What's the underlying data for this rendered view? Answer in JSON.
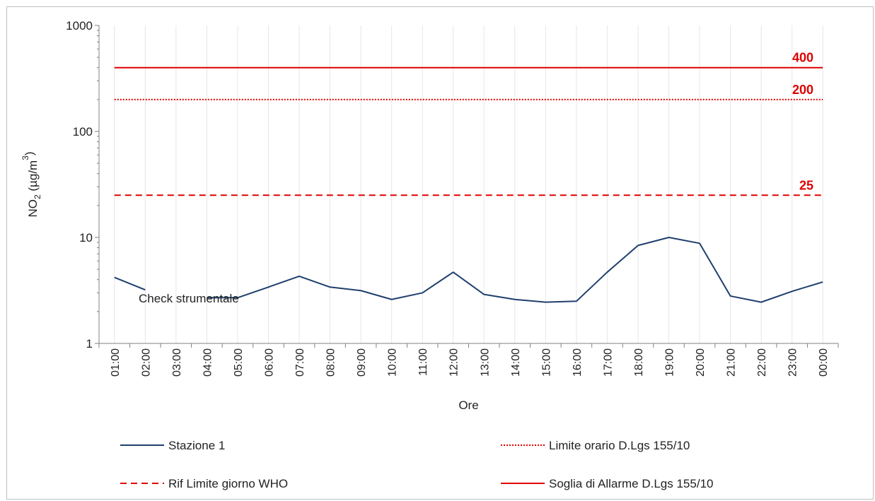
{
  "chart_data": {
    "type": "line",
    "title": "",
    "xlabel": "Ore",
    "ylabel_main": "NO",
    "ylabel_sub": "2",
    "ylabel_rest": " (µg/m",
    "ylabel_sup": "3",
    "ylabel_close": ")",
    "yscale": "log",
    "ylim": [
      1,
      1000
    ],
    "yticks": [
      "1",
      "10",
      "100",
      "1000"
    ],
    "ytick_values": [
      1,
      10,
      100,
      1000
    ],
    "categories": [
      "01:00",
      "02:00",
      "03:00",
      "04:00",
      "05:00",
      "06:00",
      "07:00",
      "08:00",
      "09:00",
      "10:00",
      "11:00",
      "12:00",
      "13:00",
      "14:00",
      "15:00",
      "16:00",
      "17:00",
      "18:00",
      "19:00",
      "20:00",
      "21:00",
      "22:00",
      "23:00",
      "00:00"
    ],
    "grid": "vertical",
    "series": [
      {
        "name": "Stazione 1",
        "style": "solid",
        "color": "#1f3f6e",
        "values": [
          4.2,
          3.2,
          null,
          2.7,
          2.7,
          3.4,
          4.3,
          3.4,
          3.15,
          2.6,
          3.0,
          4.7,
          2.9,
          2.6,
          2.45,
          2.5,
          4.7,
          8.4,
          10.0,
          8.8,
          2.8,
          2.45,
          3.1,
          3.8
        ]
      },
      {
        "name": "Limite orario D.Lgs 155/10",
        "style": "dotted",
        "color": "#e00000",
        "constant": 200
      },
      {
        "name": "Rif Limite giorno WHO",
        "style": "dashed",
        "color": "#e00000",
        "constant": 25
      },
      {
        "name": "Soglia di Allarme D.Lgs 155/10",
        "style": "solid",
        "color": "#e00000",
        "constant": 400
      }
    ],
    "threshold_labels": [
      "400",
      "200",
      "25"
    ],
    "annotation": "Check strumentale",
    "legend_placement": "bottom"
  }
}
